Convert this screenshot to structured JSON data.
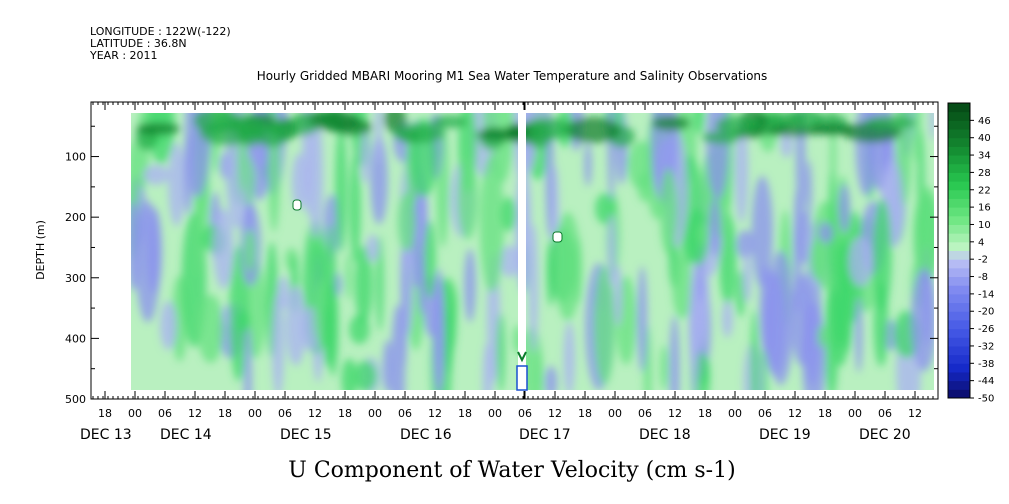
{
  "header": {
    "longitude": "LONGITUDE : 122W(-122)",
    "latitude": "LATITUDE : 36.8N",
    "year": "YEAR : 2011"
  },
  "chart_data": {
    "type": "heatmap",
    "title": "Hourly Gridded MBARI Mooring M1 Sea Water Temperature and Salinity Observations",
    "xlabel": "U Component of Water Velocity (cm s-1)",
    "ylabel": "DEPTH (m)",
    "ylim": [
      500,
      10
    ],
    "y_ticks": [
      100,
      200,
      300,
      400,
      500
    ],
    "x_ticks_hours": [
      "18",
      "00",
      "06",
      "12",
      "18",
      "00",
      "06",
      "12",
      "18",
      "00",
      "06",
      "12",
      "18",
      "00",
      "06",
      "06",
      "12",
      "18",
      "00",
      "06",
      "12",
      "18",
      "00",
      "06",
      "12",
      "18",
      "00",
      "06",
      "12"
    ],
    "x_day_labels": [
      "DEC 13",
      "DEC 14",
      "DEC 15",
      "DEC 16",
      "DEC 17",
      "DEC 18",
      "DEC 19",
      "DEC 20"
    ],
    "data_extent_depth_m": [
      20,
      490
    ],
    "colorbar_ticks": [
      46,
      40,
      34,
      28,
      22,
      16,
      10,
      4,
      -2,
      -8,
      -14,
      -20,
      -26,
      -32,
      -38,
      -44,
      -50
    ],
    "colorbar_range": [
      -50,
      52
    ],
    "colors": {
      "negative": "#8b91ee",
      "neutral": "#b9f0c0",
      "positive": "#3ed76a",
      "strong_positive": "#0a7a2a"
    }
  }
}
